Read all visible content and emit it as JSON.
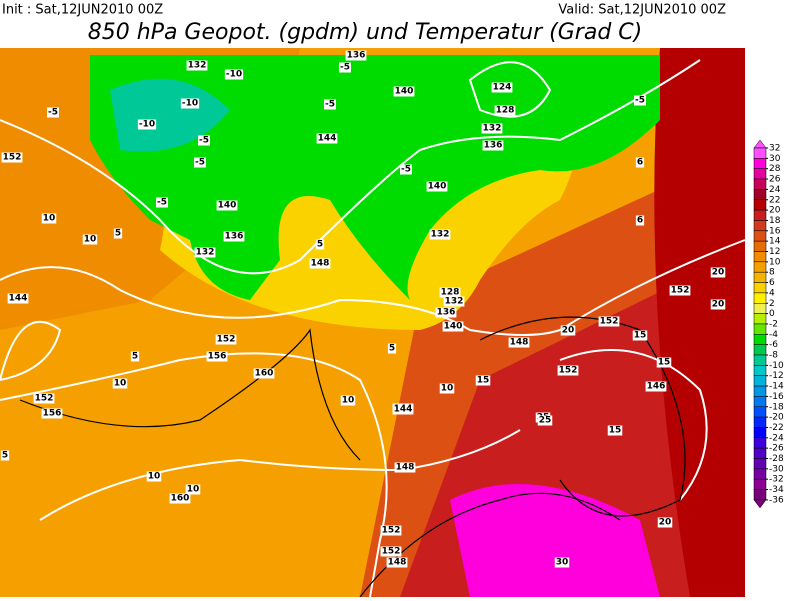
{
  "header": {
    "init": "Init : Sat,12JUN2010 00Z",
    "valid": "Valid: Sat,12JUN2010 00Z",
    "title": "850 hPa Geopot. (gpdm) und Temperatur (Grad C)"
  },
  "map_labels": [
    132,
    -10,
    -10,
    -10,
    -5,
    -5,
    136,
    -5,
    124,
    128,
    140,
    132,
    136,
    140,
    144,
    152,
    -5,
    -5,
    -5,
    -5,
    10,
    10,
    5,
    140,
    136,
    132,
    148,
    5,
    132,
    128,
    132,
    136,
    140,
    148,
    144,
    152,
    156,
    160,
    10,
    148,
    144,
    5,
    10,
    15,
    20,
    25,
    30,
    15,
    20,
    152,
    152,
    146,
    15,
    10,
    5,
    152,
    156,
    10,
    10,
    160,
    152,
    148,
    152,
    20,
    25,
    15,
    144,
    152,
    6,
    6,
    5,
    -5,
    20
  ],
  "colorbar": {
    "ticks": [
      32,
      30,
      28,
      26,
      24,
      22,
      20,
      18,
      16,
      14,
      12,
      10,
      8,
      6,
      4,
      2,
      0,
      -2,
      -4,
      -6,
      -8,
      -10,
      -12,
      -14,
      -16,
      -18,
      -20,
      -22,
      -24,
      -26,
      -28,
      -30,
      -32,
      -34,
      -36
    ],
    "colors": [
      "#ff50ff",
      "#ff00dc",
      "#e600a0",
      "#c8005a",
      "#a00028",
      "#b40000",
      "#c81e1e",
      "#d23c1e",
      "#dc5014",
      "#e66e00",
      "#f08c00",
      "#f5a000",
      "#f5b400",
      "#fad200",
      "#fff000",
      "#f0f050",
      "#b4f000",
      "#64e600",
      "#00dc00",
      "#00c850",
      "#00c896",
      "#00c8c8",
      "#00b4dc",
      "#0096e6",
      "#0078f0",
      "#0050ff",
      "#0028ff",
      "#0000ff",
      "#3c00dc",
      "#5000c8",
      "#6400b4",
      "#7800a0",
      "#8c0096",
      "#780078"
    ]
  }
}
